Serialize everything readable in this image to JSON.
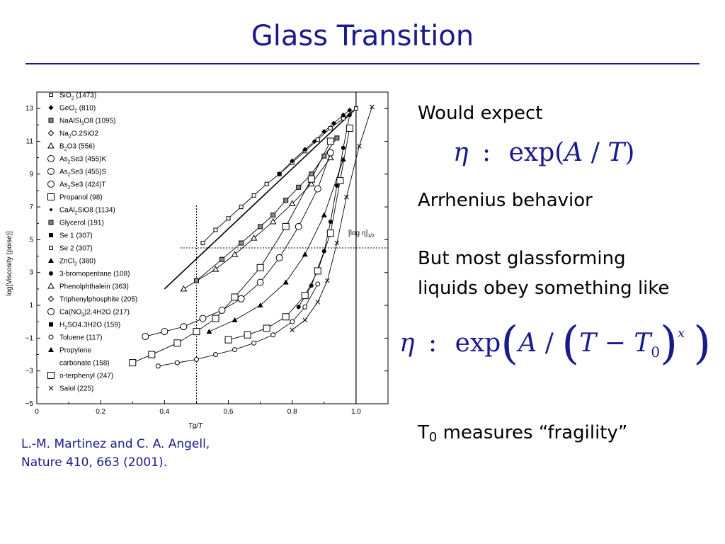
{
  "slide": {
    "title": "Glass Transition",
    "citation_line1": "L.-M. Martinez and C. A. Angell,",
    "citation_line2": "Nature 410, 663 (2001).",
    "text1": "Would expect",
    "eq1": {
      "eta": "η",
      "sim": ":",
      "func": "exp(",
      "A": "A",
      "slash": " / ",
      "T": "T",
      "close": ")"
    },
    "text2": "Arrhenius behavior",
    "text3a": "But most glassforming",
    "text3b": "liquids obey something like",
    "eq2": {
      "eta": "η",
      "sim": ":",
      "func": "exp",
      "lp": "(",
      "A": "A",
      "slash": " / ",
      "lp2": "(",
      "T": "T",
      "minus": " − ",
      "T0": "T",
      "zero": "0",
      "rp2": ")",
      "x": "x",
      "rp": ")"
    },
    "text4_pre": "T",
    "text4_sub": "0",
    "text4_post": " measures “fragility”",
    "colors": {
      "title": "#1a1a8c",
      "text": "#000000"
    }
  },
  "chart_data": {
    "type": "scatter",
    "xlabel": "Tg/T",
    "ylabel": "log[Viscosity (poise)]",
    "xlim": [
      0,
      1.1
    ],
    "ylim": [
      -5,
      14
    ],
    "xticks": [
      0,
      0.2,
      0.4,
      0.6,
      0.8,
      1.0
    ],
    "xtick_labels": [
      "0",
      "0.2",
      "0.4",
      "0.6",
      "0.8",
      "1.0"
    ],
    "yticks": [
      -5,
      -3,
      -1,
      1,
      3,
      5,
      7,
      9,
      11,
      13
    ],
    "ytick_labels": [
      "−5",
      "−3",
      "−1",
      "1",
      "3",
      "5",
      "7",
      "9",
      "11",
      "13"
    ],
    "annotation": {
      "text": "[log η]",
      "sub": "1/2"
    },
    "reference_lines": {
      "vertical_x": [
        0.5,
        1.0
      ],
      "horizontal_y": [
        4.5
      ]
    },
    "legend": [
      {
        "label": "SiO",
        "sub": "2",
        "rest": " (1473)",
        "marker": "square-open-small"
      },
      {
        "label": "GeO",
        "sub": "2",
        "rest": " (810)",
        "marker": "diamond-filled"
      },
      {
        "label": "NaAlSi",
        "sub": "3",
        "rest": "O8 (1095)",
        "marker": "square-dot"
      },
      {
        "label": "Na",
        "sub": "2",
        "rest": "O.2SiO2",
        "marker": "diamond-open"
      },
      {
        "label": "B",
        "sub": "2",
        "rest": "O3 (556)",
        "marker": "triangle-open"
      },
      {
        "label": "As",
        "sub": "2",
        "rest": "Se3 (455)K",
        "marker": "circle-open"
      },
      {
        "label": "As",
        "sub": "2",
        "rest": "Se3 (455)S",
        "marker": "circle-open"
      },
      {
        "label": "As",
        "sub": "2",
        "rest": "Se3 (424)T",
        "marker": "circle-open"
      },
      {
        "label": "Propanol (98)",
        "sub": "",
        "rest": "",
        "marker": "square-open-large"
      },
      {
        "label": "CaAl",
        "sub": "2",
        "rest": "SiO8 (1134)",
        "marker": "diamond-small"
      },
      {
        "label": "Glycerol (191)",
        "sub": "",
        "rest": "",
        "marker": "square-dot"
      },
      {
        "label": "Se 1 (307)",
        "sub": "",
        "rest": "",
        "marker": "square-filled"
      },
      {
        "label": "Se 2 (307)",
        "sub": "",
        "rest": "",
        "marker": "square-open-small"
      },
      {
        "label": "ZnCl",
        "sub": "2",
        "rest": " (380)",
        "marker": "triangle-filled"
      },
      {
        "label": "3-bromopentane (108)",
        "sub": "",
        "rest": "",
        "marker": "circle-filled"
      },
      {
        "label": "Phenolphthalein (363)",
        "sub": "",
        "rest": "",
        "marker": "triangle-open"
      },
      {
        "label": "Triphenylphosphite (205)",
        "sub": "",
        "rest": "",
        "marker": "diamond-open"
      },
      {
        "label": "Ca(NO",
        "sub": "3",
        "rest": ")2.4H2O (217)",
        "marker": "circle-open"
      },
      {
        "label": "H",
        "sub": "2",
        "rest": "SO4.3H2O (159)",
        "marker": "square-filled"
      },
      {
        "label": "Toluene (117)",
        "sub": "",
        "rest": "",
        "marker": "circle-open-small"
      },
      {
        "label": "Propylene",
        "sub": "",
        "rest": "",
        "marker": "triangle-filled"
      },
      {
        "label": "carbonate (158)",
        "sub": "",
        "rest": "",
        "marker": "none"
      },
      {
        "label": "o-terphenyl (247)",
        "sub": "",
        "rest": "",
        "marker": "square-open-large"
      },
      {
        "label": "Salol (225)",
        "sub": "",
        "rest": "",
        "marker": "x"
      }
    ],
    "series": [
      {
        "name": "SiO2 (1473)",
        "marker": "square-open-small",
        "x": [
          0.52,
          0.56,
          0.6,
          0.64,
          0.68,
          0.72,
          0.76,
          0.8,
          0.84,
          0.88,
          0.92,
          0.96,
          1.0
        ],
        "y": [
          4.8,
          5.6,
          6.3,
          7.0,
          7.7,
          8.4,
          9.0,
          9.7,
          10.4,
          11.1,
          11.8,
          12.4,
          13.0
        ]
      },
      {
        "name": "GeO2 (810)",
        "marker": "diamond-filled",
        "x": [
          0.76,
          0.8,
          0.84,
          0.87,
          0.9,
          0.93,
          0.96,
          0.98
        ],
        "y": [
          9.0,
          9.8,
          10.5,
          11.0,
          11.6,
          12.1,
          12.6,
          12.9
        ]
      },
      {
        "name": "Glycerol (191)",
        "marker": "square-dot",
        "x": [
          0.5,
          0.58,
          0.64,
          0.7,
          0.74,
          0.78,
          0.82,
          0.86,
          0.9,
          0.94
        ],
        "y": [
          2.5,
          3.8,
          4.8,
          5.8,
          6.5,
          7.4,
          8.2,
          9.0,
          10.1,
          11.2
        ]
      },
      {
        "name": "B2O3 (556)",
        "marker": "triangle-open",
        "x": [
          0.46,
          0.56,
          0.62,
          0.68,
          0.74,
          0.8,
          0.86,
          0.92
        ],
        "y": [
          2.0,
          3.2,
          4.1,
          5.1,
          6.1,
          7.2,
          8.4,
          10.0
        ]
      },
      {
        "name": "Propanol (98)",
        "marker": "square-open-large",
        "x": [
          0.3,
          0.36,
          0.44,
          0.5,
          0.56,
          0.62,
          0.7,
          0.78,
          0.86,
          0.92
        ],
        "y": [
          -2.5,
          -2.0,
          -1.3,
          -0.6,
          0.2,
          1.5,
          3.3,
          5.8,
          8.7,
          11.0
        ]
      },
      {
        "name": "Ca(NO3)2.4H2O (217)",
        "marker": "circle-open",
        "x": [
          0.34,
          0.4,
          0.46,
          0.52,
          0.58,
          0.64,
          0.7,
          0.76,
          0.82,
          0.88,
          0.92
        ],
        "y": [
          -0.9,
          -0.6,
          -0.3,
          0.2,
          0.7,
          1.4,
          2.4,
          3.9,
          5.8,
          8.1,
          10.3
        ]
      },
      {
        "name": "o-terphenyl (247)",
        "marker": "square-open-large",
        "x": [
          0.6,
          0.66,
          0.72,
          0.78,
          0.84,
          0.88,
          0.92,
          0.95,
          0.98
        ],
        "y": [
          -1.1,
          -0.8,
          -0.4,
          0.3,
          1.6,
          3.1,
          5.4,
          8.6,
          11.8
        ]
      },
      {
        "name": "Toluene (117)",
        "marker": "circle-open-small",
        "x": [
          0.38,
          0.44,
          0.5,
          0.56,
          0.62,
          0.68,
          0.74,
          0.8,
          0.84,
          0.88
        ],
        "y": [
          -2.7,
          -2.5,
          -2.3,
          -2.0,
          -1.7,
          -1.3,
          -0.8,
          0.0,
          0.9,
          2.3
        ]
      },
      {
        "name": "Salol (225)",
        "marker": "x",
        "x": [
          0.8,
          0.84,
          0.88,
          0.91,
          0.94,
          0.97,
          1.01,
          1.05
        ],
        "y": [
          -0.5,
          0.1,
          1.2,
          2.5,
          4.8,
          7.6,
          10.7,
          13.1
        ]
      },
      {
        "name": "3-bromopentane (108)",
        "marker": "circle-filled",
        "x": [
          0.82,
          0.86,
          0.9,
          0.92,
          0.94,
          0.96,
          0.98
        ],
        "y": [
          0.9,
          2.2,
          4.3,
          6.1,
          8.3,
          10.6,
          12.6
        ]
      },
      {
        "name": "ZnCl2 (380)",
        "marker": "triangle-filled",
        "x": [
          0.54,
          0.62,
          0.7,
          0.78,
          0.84,
          0.9,
          0.96
        ],
        "y": [
          -0.6,
          0.1,
          1.0,
          2.4,
          4.1,
          6.5,
          9.9
        ]
      }
    ]
  }
}
